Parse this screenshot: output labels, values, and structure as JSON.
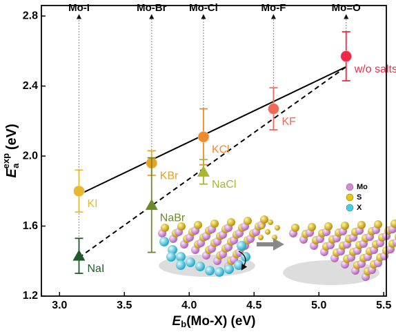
{
  "chart_data": {
    "type": "scatter",
    "xlabel": {
      "symbol": "E",
      "sub": "b",
      "rest": "(Mo-X) (eV)"
    },
    "ylabel": {
      "symbol": "E",
      "sub": "a",
      "sup": "exp",
      "rest": " (eV)"
    },
    "xlim": [
      2.86,
      5.52
    ],
    "xticks": [
      {
        "value": 3,
        "label": "3.0"
      },
      3.5,
      {
        "value": 4,
        "label": "4.0"
      },
      4.5,
      {
        "value": 5,
        "label": "5.0"
      },
      5.5
    ],
    "ylim": [
      1.2,
      2.86
    ],
    "yticks": [
      1.2,
      1.6,
      {
        "value": 2,
        "label": "2.0"
      },
      2.4,
      2.8
    ],
    "series": [
      {
        "marker": "circle",
        "x": [
          3.15,
          3.71,
          4.11,
          4.65,
          5.21
        ],
        "values": [
          1.8,
          1.96,
          2.11,
          2.27,
          2.57
        ],
        "errors": [
          0.12,
          0.07,
          0.16,
          0.12,
          0.14
        ],
        "colors": [
          "#e8b830",
          "#eaa020",
          "#f08a2a",
          "#f06a5a",
          "#ee2a48"
        ],
        "labels": [
          "KI",
          "KBr",
          "KCl",
          "KF",
          "w/o salts"
        ]
      },
      {
        "marker": "triangle",
        "x": [
          3.15,
          3.71,
          4.11
        ],
        "values": [
          1.43,
          1.72,
          1.91
        ],
        "errors": [
          0.1,
          0.27,
          0.07
        ],
        "colors": [
          "#1f5a2a",
          "#6c8a2a",
          "#a8b830"
        ],
        "labels": [
          "NaI",
          "NaBr",
          "NaCl"
        ]
      }
    ],
    "fits": [
      {
        "style": "solid",
        "x": [
          3.15,
          5.21
        ],
        "values": [
          1.78,
          2.51
        ]
      },
      {
        "style": "dashed",
        "x": [
          3.15,
          5.21
        ],
        "values": [
          1.42,
          2.51
        ]
      }
    ],
    "top_labels": [
      {
        "x": 3.15,
        "from": 1.43,
        "label": "Mo-I"
      },
      {
        "x": 3.71,
        "from": 1.72,
        "label": "Mo-Br"
      },
      {
        "x": 4.11,
        "from": 1.91,
        "label": "Mo-Cl"
      },
      {
        "x": 4.65,
        "from": 2.27,
        "label": "Mo-F"
      },
      {
        "x": 5.21,
        "from": 2.57,
        "label": "Mo=O"
      }
    ],
    "inset_legend": [
      {
        "label": "Mo",
        "color": "#d48ad8"
      },
      {
        "label": "S",
        "color": "#e8c800"
      },
      {
        "label": "X",
        "color": "#40d0e8"
      }
    ]
  }
}
